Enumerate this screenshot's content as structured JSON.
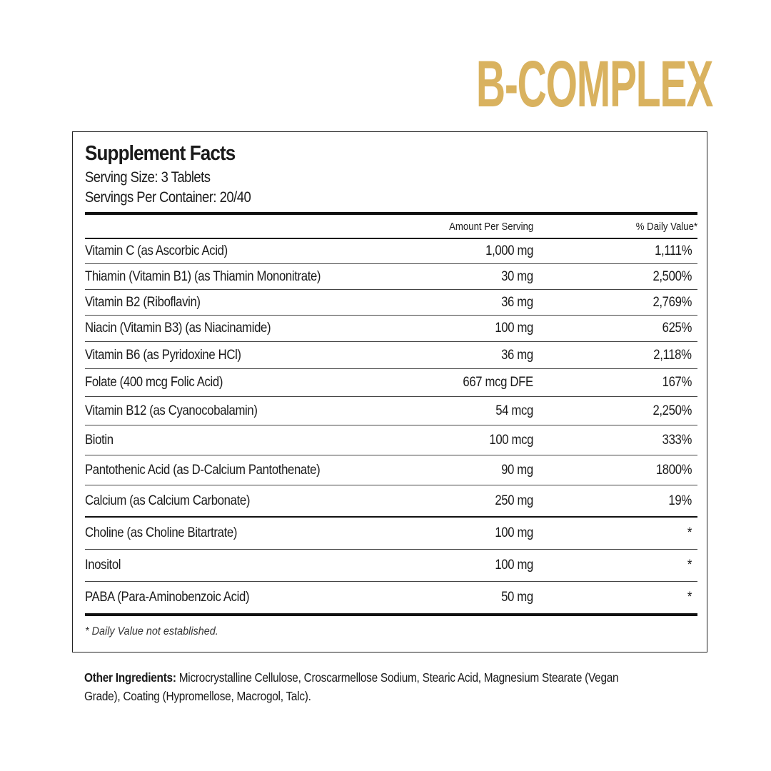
{
  "brand_title": "B-COMPLEX",
  "facts": {
    "title": "Supplement Facts",
    "serving_size": "Serving Size: 3 Tablets",
    "servings_per_container": "Servings Per Container: 20/40",
    "header": {
      "amount": "Amount Per Serving",
      "dv": "% Daily Value*"
    },
    "rows": [
      {
        "name": "Vitamin C (as Ascorbic Acid)",
        "amount": "1,000 mg",
        "dv": "1,111%"
      },
      {
        "name": "Thiamin (Vitamin B1) (as Thiamin Mononitrate)",
        "amount": "30 mg",
        "dv": "2,500%"
      },
      {
        "name": "Vitamin B2 (Riboflavin)",
        "amount": "36 mg",
        "dv": "2,769%"
      },
      {
        "name": "Niacin (Vitamin B3) (as Niacinamide)",
        "amount": "100 mg",
        "dv": "625%"
      },
      {
        "name": "Vitamin B6 (as Pyridoxine HCl)",
        "amount": "36 mg",
        "dv": "2,118%"
      },
      {
        "name": "Folate  (400 mcg Folic Acid)",
        "amount": "667 mcg DFE",
        "dv": "167%"
      },
      {
        "name": "Vitamin B12  (as Cyanocobalamin)",
        "amount": "54 mcg",
        "dv": "2,250%"
      },
      {
        "name": "Biotin",
        "amount": "100 mcg",
        "dv": "333%"
      },
      {
        "name": "Pantothenic Acid (as D-Calcium Pantothenate)",
        "amount": "90 mg",
        "dv": "1800%"
      },
      {
        "name": "Calcium (as Calcium Carbonate)",
        "amount": "250 mg",
        "dv": "19%"
      },
      {
        "name": "Choline (as Choline Bitartrate)",
        "amount": "100 mg",
        "dv": "*"
      },
      {
        "name": "Inositol",
        "amount": "100 mg",
        "dv": "*"
      },
      {
        "name": "PABA (Para-Aminobenzoic Acid)",
        "amount": "50 mg",
        "dv": "*"
      }
    ],
    "footnote": "* Daily Value not established."
  },
  "other_ingredients": {
    "label": "Other Ingredients:",
    "text": " Microcrystalline Cellulose, Croscarmellose Sodium, Stearic Acid, Magnesium Stearate (Vegan Grade), Coating (Hypromellose, Macrogol, Talc)."
  },
  "colors": {
    "brand": "#d9b25f",
    "text": "#1a1a1a"
  }
}
